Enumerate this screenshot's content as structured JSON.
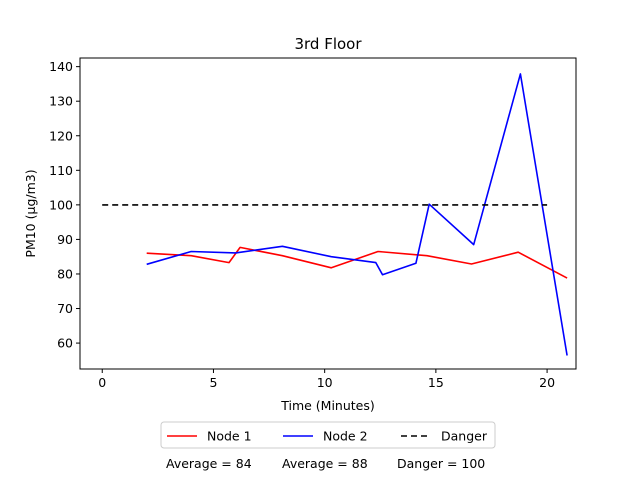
{
  "chart_data": {
    "type": "line",
    "title": "3rd Floor",
    "xlabel": "Time (Minutes)",
    "ylabel": "PM10 (µg/m3)",
    "xlim": [
      -1,
      21.3
    ],
    "ylim": [
      52.5,
      142.5
    ],
    "xticks": [
      0,
      5,
      10,
      15,
      20
    ],
    "yticks": [
      60,
      70,
      80,
      90,
      100,
      110,
      120,
      130,
      140
    ],
    "grid": false,
    "legend_position": "bottom-center",
    "series": [
      {
        "name": "Node 1",
        "color": "#ff0000",
        "dash": "solid",
        "x": [
          2.0,
          4.0,
          5.7,
          6.2,
          8.1,
          10.3,
          12.4,
          14.6,
          16.6,
          18.7,
          20.9
        ],
        "y": [
          86,
          85.3,
          83.3,
          87.7,
          85.3,
          81.8,
          86.5,
          85.3,
          82.9,
          86.3,
          78.8
        ]
      },
      {
        "name": "Node 2",
        "color": "#0000ff",
        "dash": "solid",
        "x": [
          2.0,
          4.0,
          6.0,
          8.1,
          10.3,
          12.3,
          12.6,
          14.1,
          14.7,
          16.7,
          18.8,
          20.9
        ],
        "y": [
          82.8,
          86.5,
          86.1,
          88.0,
          85.0,
          83.3,
          79.8,
          83.1,
          100.2,
          88.5,
          137.9,
          56.4
        ]
      },
      {
        "name": "Danger",
        "color": "#000000",
        "dash": "dashed",
        "x": [
          0,
          20
        ],
        "y": [
          100,
          100
        ]
      }
    ],
    "stats": [
      {
        "label": "Average = 84"
      },
      {
        "label": "Average = 88"
      },
      {
        "label": "Danger = 100"
      }
    ]
  }
}
